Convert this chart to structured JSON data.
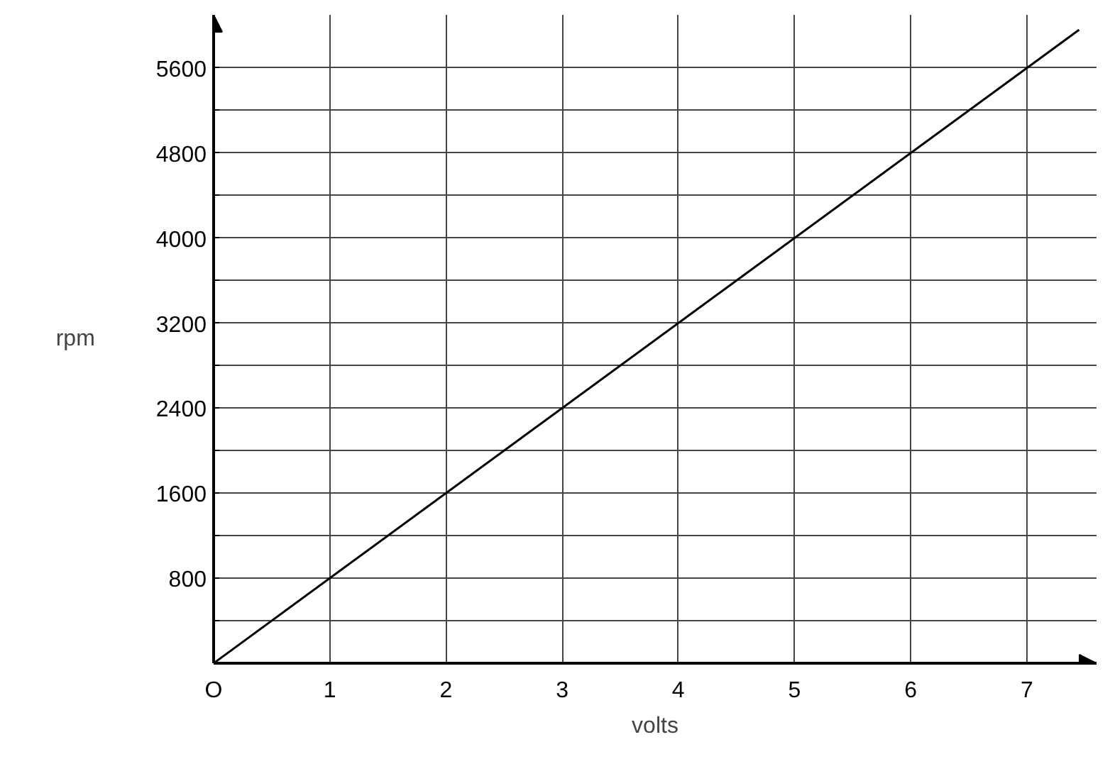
{
  "chart_data": {
    "type": "line",
    "xlabel": "volts",
    "ylabel": "rpm",
    "annotations": [
      "O"
    ],
    "x": [
      0,
      7.45
    ],
    "series": [
      {
        "color": "#000000",
        "values": [
          0,
          5960
        ]
      }
    ],
    "xlim": [
      0,
      7.6
    ],
    "ylim": [
      0,
      6100
    ],
    "xticks": [
      1,
      2,
      3,
      4,
      5,
      6,
      7
    ],
    "yticks": [
      {
        "value": 400,
        "label": null
      },
      800,
      {
        "value": 1200,
        "label": null
      },
      1600,
      {
        "value": 2000,
        "label": null
      },
      2400,
      {
        "value": 2800,
        "label": null
      },
      3200,
      {
        "value": 3600,
        "label": null
      },
      4000,
      {
        "value": 4400,
        "label": null
      },
      4800,
      {
        "value": 5200,
        "label": null
      },
      5600
    ],
    "grid": true,
    "marker": "none",
    "line_style": "solid"
  }
}
